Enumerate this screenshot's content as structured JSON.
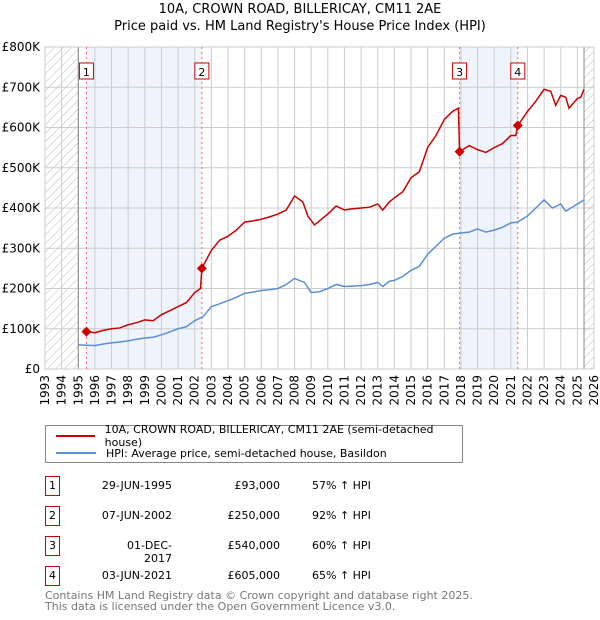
{
  "title_line1": "10A, CROWN ROAD, BILLERICAY, CM11 2AE",
  "title_line2": "Price paid vs. HM Land Registry's House Price Index (HPI)",
  "chart_data": {
    "type": "line",
    "xlim": [
      1993,
      2026
    ],
    "ylim": [
      0,
      800000
    ],
    "x_ticks": [
      "1993",
      "1994",
      "1995",
      "1996",
      "1997",
      "1998",
      "1999",
      "2000",
      "2001",
      "2002",
      "2003",
      "2004",
      "2005",
      "2006",
      "2007",
      "2008",
      "2009",
      "2010",
      "2011",
      "2012",
      "2013",
      "2014",
      "2015",
      "2016",
      "2017",
      "2018",
      "2019",
      "2020",
      "2021",
      "2022",
      "2023",
      "2024",
      "2025",
      "2026"
    ],
    "y_ticks": [
      {
        "v": 0,
        "label": "£0"
      },
      {
        "v": 100000,
        "label": "£100K"
      },
      {
        "v": 200000,
        "label": "£200K"
      },
      {
        "v": 300000,
        "label": "£300K"
      },
      {
        "v": 400000,
        "label": "£400K"
      },
      {
        "v": 500000,
        "label": "£500K"
      },
      {
        "v": 600000,
        "label": "£600K"
      },
      {
        "v": 700000,
        "label": "£700K"
      },
      {
        "v": 800000,
        "label": "£800K"
      }
    ],
    "hatched_ranges": [
      [
        1993,
        1995
      ],
      [
        2025.4,
        2026
      ]
    ],
    "shaded_ranges": [
      [
        1995.49,
        2002.43
      ],
      [
        2017.92,
        2021.42
      ]
    ],
    "series": [
      {
        "name": "10A, CROWN ROAD, BILLERICAY, CM11 2AE (semi-detached house)",
        "color": "#cc0000",
        "points": [
          [
            1995.49,
            93
          ],
          [
            1996,
            90
          ],
          [
            1996.5,
            96
          ],
          [
            1997,
            100
          ],
          [
            1997.5,
            102
          ],
          [
            1998,
            110
          ],
          [
            1998.5,
            115
          ],
          [
            1999,
            122
          ],
          [
            1999.5,
            120
          ],
          [
            2000,
            135
          ],
          [
            2000.5,
            145
          ],
          [
            2001,
            155
          ],
          [
            2001.5,
            165
          ],
          [
            2002,
            190
          ],
          [
            2002.35,
            200
          ],
          [
            2002.43,
            250
          ],
          [
            2003,
            295
          ],
          [
            2003.5,
            320
          ],
          [
            2004,
            330
          ],
          [
            2004.5,
            345
          ],
          [
            2005,
            365
          ],
          [
            2005.5,
            368
          ],
          [
            2006,
            372
          ],
          [
            2006.5,
            378
          ],
          [
            2007,
            385
          ],
          [
            2007.5,
            395
          ],
          [
            2008,
            430
          ],
          [
            2008.5,
            415
          ],
          [
            2008.8,
            380
          ],
          [
            2009.2,
            358
          ],
          [
            2009.7,
            375
          ],
          [
            2010,
            385
          ],
          [
            2010.5,
            405
          ],
          [
            2011,
            395
          ],
          [
            2011.5,
            398
          ],
          [
            2012,
            400
          ],
          [
            2012.5,
            402
          ],
          [
            2013,
            410
          ],
          [
            2013.3,
            395
          ],
          [
            2013.7,
            415
          ],
          [
            2014,
            425
          ],
          [
            2014.5,
            440
          ],
          [
            2015,
            475
          ],
          [
            2015.5,
            490
          ],
          [
            2016,
            550
          ],
          [
            2016.5,
            580
          ],
          [
            2017,
            620
          ],
          [
            2017.5,
            640
          ],
          [
            2017.85,
            648
          ],
          [
            2017.92,
            540
          ],
          [
            2018.5,
            555
          ],
          [
            2019,
            545
          ],
          [
            2019.5,
            538
          ],
          [
            2020,
            550
          ],
          [
            2020.5,
            560
          ],
          [
            2021,
            580
          ],
          [
            2021.3,
            580
          ],
          [
            2021.42,
            605
          ],
          [
            2022,
            640
          ],
          [
            2022.5,
            665
          ],
          [
            2023,
            695
          ],
          [
            2023.4,
            690
          ],
          [
            2023.7,
            655
          ],
          [
            2024,
            680
          ],
          [
            2024.3,
            675
          ],
          [
            2024.5,
            648
          ],
          [
            2025,
            672
          ],
          [
            2025.2,
            675
          ],
          [
            2025.4,
            695
          ]
        ]
      },
      {
        "name": "HPI: Average price, semi-detached house, Basildon",
        "color": "#5b8fd4",
        "points": [
          [
            1995,
            60
          ],
          [
            1996,
            58
          ],
          [
            1996.5,
            62
          ],
          [
            1997,
            65
          ],
          [
            1997.5,
            67
          ],
          [
            1998,
            70
          ],
          [
            1998.5,
            74
          ],
          [
            1999,
            77
          ],
          [
            1999.5,
            79
          ],
          [
            2000,
            85
          ],
          [
            2000.5,
            92
          ],
          [
            2001,
            100
          ],
          [
            2001.5,
            105
          ],
          [
            2002,
            120
          ],
          [
            2002.5,
            130
          ],
          [
            2003,
            155
          ],
          [
            2003.5,
            162
          ],
          [
            2004,
            170
          ],
          [
            2004.5,
            178
          ],
          [
            2005,
            188
          ],
          [
            2005.5,
            191
          ],
          [
            2006,
            195
          ],
          [
            2006.5,
            197
          ],
          [
            2007,
            200
          ],
          [
            2007.5,
            210
          ],
          [
            2008,
            225
          ],
          [
            2008.6,
            215
          ],
          [
            2009,
            190
          ],
          [
            2009.5,
            192
          ],
          [
            2010,
            200
          ],
          [
            2010.5,
            210
          ],
          [
            2011,
            205
          ],
          [
            2011.5,
            206
          ],
          [
            2012,
            207
          ],
          [
            2012.5,
            210
          ],
          [
            2013,
            215
          ],
          [
            2013.3,
            205
          ],
          [
            2013.7,
            218
          ],
          [
            2014,
            220
          ],
          [
            2014.5,
            230
          ],
          [
            2015,
            245
          ],
          [
            2015.5,
            255
          ],
          [
            2016,
            285
          ],
          [
            2016.5,
            305
          ],
          [
            2017,
            325
          ],
          [
            2017.5,
            335
          ],
          [
            2018,
            338
          ],
          [
            2018.5,
            340
          ],
          [
            2019,
            348
          ],
          [
            2019.5,
            340
          ],
          [
            2020,
            345
          ],
          [
            2020.5,
            352
          ],
          [
            2021,
            363
          ],
          [
            2021.4,
            365
          ],
          [
            2022,
            380
          ],
          [
            2022.5,
            400
          ],
          [
            2023,
            420
          ],
          [
            2023.5,
            400
          ],
          [
            2024,
            410
          ],
          [
            2024.3,
            392
          ],
          [
            2025,
            410
          ],
          [
            2025.4,
            420
          ]
        ]
      }
    ],
    "sales": [
      {
        "label": "1",
        "x": 1995.49,
        "value": 93000,
        "date": "29-JUN-1995",
        "price": "£93,000",
        "hpi": "57% ↑ HPI"
      },
      {
        "label": "2",
        "x": 2002.43,
        "value": 250000,
        "date": "07-JUN-2002",
        "price": "£250,000",
        "hpi": "92% ↑ HPI"
      },
      {
        "label": "3",
        "x": 2017.92,
        "value": 540000,
        "date": "01-DEC-2017",
        "price": "£540,000",
        "hpi": "60% ↑ HPI"
      },
      {
        "label": "4",
        "x": 2021.42,
        "value": 605000,
        "date": "03-JUN-2021",
        "price": "£605,000",
        "hpi": "65% ↑ HPI"
      }
    ]
  },
  "legend": {
    "red": "10A, CROWN ROAD, BILLERICAY, CM11 2AE (semi-detached house)",
    "blue": "HPI: Average price, semi-detached house, Basildon"
  },
  "footer_line1": "Contains HM Land Registry data © Crown copyright and database right 2025.",
  "footer_line2": "This data is licensed under the Open Government Licence v3.0."
}
